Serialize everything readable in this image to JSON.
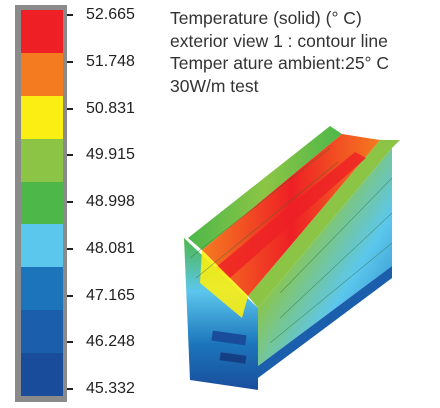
{
  "legend": {
    "values": [
      "52.665",
      "51.748",
      "50.831",
      "49.915",
      "48.998",
      "48.081",
      "47.165",
      "46.248",
      "45.332"
    ],
    "colors": [
      "#ee1f25",
      "#f57b20",
      "#fbee13",
      "#8cc545",
      "#4db74a",
      "#5cc7ed",
      "#1c75bb",
      "#1b5eab",
      "#194d9c"
    ]
  },
  "caption": {
    "line1": "Temperature (solid) (° C)",
    "line2": "exterior view 1 : contour line",
    "line3": "Temper ature ambient:25° C",
    "line4": "30W/m test"
  }
}
